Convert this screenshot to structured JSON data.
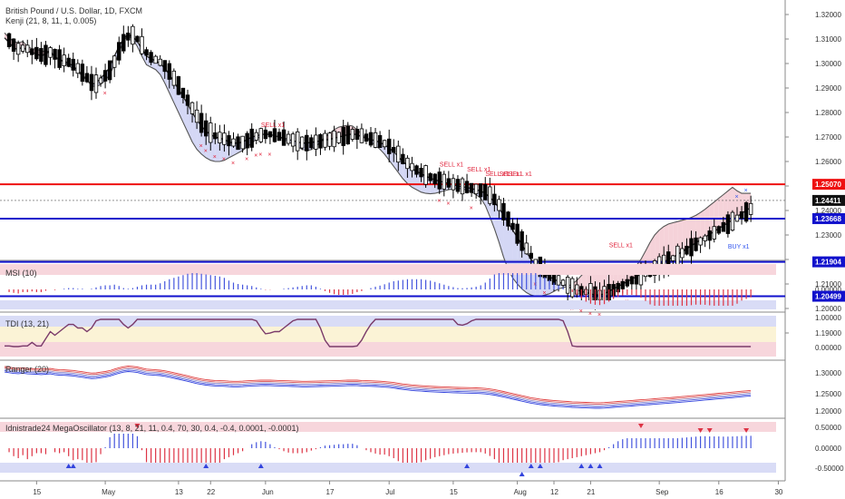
{
  "header": {
    "symbol_title": "British Pound / U.S. Dollar, 1D, FXCM",
    "indicator_title": "Kenji (21, 8, 11, 1, 0.005)"
  },
  "colors": {
    "up_candle": "#ffffff",
    "down_candle": "#000000",
    "resistance": "#ee1111",
    "support": "#1111cc",
    "sell_marker": "#e0223a",
    "buy_marker": "#3355ee",
    "ribbon_fill_bear": "#f3c7cf",
    "ribbon_fill_bull": "#c9cdf2"
  },
  "chart_data": [
    {
      "type": "line",
      "title": "British Pound / U.S. Dollar, 1D, FXCM",
      "subtitle": "Kenji (21, 8, 11, 1, 0.005)",
      "xlabel": "",
      "ylabel": "",
      "ylim": [
        1.19,
        1.325
      ],
      "y_ticks": [
        "1.32000",
        "1.31000",
        "1.30000",
        "1.29000",
        "1.28000",
        "1.27000",
        "1.26000",
        "1.25000",
        "1.24000",
        "1.23000",
        "1.22000",
        "1.21000",
        "1.20000",
        "1.19000"
      ],
      "x_ticks": [
        "15",
        "May",
        "13",
        "22",
        "Jun",
        "17",
        "Jul",
        "15",
        "Aug",
        "12",
        "21",
        "Sep",
        "16",
        "30"
      ],
      "x_tick_index": [
        7,
        22,
        38,
        45,
        57,
        71,
        84,
        98,
        112,
        120,
        128,
        143,
        156,
        169
      ],
      "series": [
        {
          "values": [
            1.3105,
            1.3085,
            1.3065,
            1.3055,
            1.307,
            1.305,
            1.3045,
            1.304,
            1.303,
            1.304,
            1.305,
            1.3025,
            1.3015,
            1.301,
            1.3,
            1.299,
            1.297,
            1.2955,
            1.293,
            1.2915,
            1.292,
            1.294,
            1.296,
            1.2985,
            1.303,
            1.307,
            1.31,
            1.312,
            1.311,
            1.309,
            1.306,
            1.303,
            1.302,
            1.301,
            1.3,
            1.298,
            1.2955,
            1.2925,
            1.2895,
            1.2865,
            1.2835,
            1.28,
            1.277,
            1.2745,
            1.2725,
            1.271,
            1.27,
            1.2695,
            1.269,
            1.268,
            1.2675,
            1.2675,
            1.268,
            1.269,
            1.27,
            1.2705,
            1.271,
            1.2712,
            1.271,
            1.2705,
            1.27,
            1.2695,
            1.269,
            1.2685,
            1.268,
            1.2675,
            1.2675,
            1.2678,
            1.268,
            1.2685,
            1.2688,
            1.269,
            1.2695,
            1.27,
            1.2705,
            1.271,
            1.2712,
            1.271,
            1.27,
            1.2695,
            1.269,
            1.2685,
            1.2678,
            1.2668,
            1.2655,
            1.264,
            1.262,
            1.26,
            1.2585,
            1.257,
            1.256,
            1.255,
            1.254,
            1.2532,
            1.2525,
            1.252,
            1.2515,
            1.251,
            1.2505,
            1.25,
            1.2497,
            1.2494,
            1.249,
            1.2485,
            1.248,
            1.247,
            1.2455,
            1.2435,
            1.241,
            1.238,
            1.235,
            1.232,
            1.229,
            1.226,
            1.223,
            1.22,
            1.218,
            1.216,
            1.2145,
            1.213,
            1.212,
            1.211,
            1.21,
            1.209,
            1.208,
            1.2075,
            1.207,
            1.2065,
            1.206,
            1.2055,
            1.2055,
            1.206,
            1.207,
            1.208,
            1.209,
            1.21,
            1.211,
            1.212,
            1.213,
            1.214,
            1.215,
            1.216,
            1.217,
            1.218,
            1.219,
            1.22,
            1.221,
            1.222,
            1.2232,
            1.2244,
            1.2256,
            1.2268,
            1.228,
            1.2292,
            1.2303,
            1.2315,
            1.2327,
            1.2338,
            1.235,
            1.2362,
            1.2375,
            1.2388,
            1.24,
            1.2412
          ]
        },
        {
          "values": [
            1.3125,
            1.3105,
            1.309,
            1.3085,
            1.309,
            1.307,
            1.306,
            1.306,
            1.305,
            1.305,
            1.305,
            1.303,
            1.3015,
            1.3005,
            1.299,
            1.298,
            1.2965,
            1.295,
            1.293,
            1.291,
            1.2905,
            1.2915,
            1.293,
            1.2955,
            1.2995,
            1.3045,
            1.309,
            1.3115,
            1.31,
            1.307,
            1.303,
            1.2995,
            1.2985,
            1.2975,
            1.2955,
            1.292,
            1.288,
            1.284,
            1.28,
            1.276,
            1.272,
            1.268,
            1.265,
            1.263,
            1.2615,
            1.2605,
            1.26,
            1.26,
            1.2605,
            1.2615,
            1.2625,
            1.2635,
            1.2645,
            1.266,
            1.2675,
            1.269,
            1.2705,
            1.2715,
            1.2712,
            1.2705,
            1.27,
            1.269,
            1.268,
            1.267,
            1.266,
            1.265,
            1.2645,
            1.2648,
            1.266,
            1.268,
            1.27,
            1.2715,
            1.273,
            1.274,
            1.2745,
            1.2748,
            1.2745,
            1.273,
            1.2712,
            1.2695,
            1.268,
            1.2665,
            1.265,
            1.263,
            1.2605,
            1.258,
            1.2555,
            1.253,
            1.251,
            1.2495,
            1.2485,
            1.2475,
            1.247,
            1.2468,
            1.247,
            1.2475,
            1.248,
            1.2485,
            1.2488,
            1.249,
            1.2488,
            1.2483,
            1.2475,
            1.2465,
            1.245,
            1.242,
            1.2375,
            1.2325,
            1.227,
            1.221,
            1.216,
            1.2125,
            1.21,
            1.208,
            1.2065,
            1.2055,
            1.205,
            1.205,
            1.2055,
            1.206,
            1.207,
            1.208,
            1.2085,
            1.209,
            1.21,
            1.2115,
            1.2135,
            1.2155,
            1.2165,
            1.2168,
            1.217,
            1.2168,
            1.216,
            1.215,
            1.2145,
            1.2145,
            1.215,
            1.216,
            1.2175,
            1.22,
            1.2235,
            1.227,
            1.23,
            1.232,
            1.2335,
            1.2345,
            1.235,
            1.2355,
            1.236,
            1.2365,
            1.2372,
            1.238,
            1.2392,
            1.2405,
            1.242,
            1.2435,
            1.245,
            1.2465,
            1.248,
            1.2495,
            1.248,
            1.247,
            1.247,
            1.247,
            1.247,
            1.247,
            1.247,
            1.247
          ]
        },
        {
          "name": "Support",
          "values": [
            1.2507,
            1.23668,
            1.21904,
            1.20499
          ]
        }
      ]
    },
    {
      "type": "bar",
      "title": "MSI (10)",
      "ylim": [
        -0.015,
        0.015
      ],
      "y_ticks": [
        "0.00000"
      ]
    },
    {
      "type": "line",
      "title": "TDI (13, 21)",
      "ylim": [
        -0.2,
        1.1
      ],
      "y_ticks": [
        "1.00000",
        "0.00000"
      ]
    },
    {
      "type": "line",
      "title": "Ranger (20)",
      "ylim": [
        1.18,
        1.34
      ],
      "y_ticks": [
        "1.30000",
        "1.25000",
        "1.20000"
      ]
    },
    {
      "type": "bar",
      "title": "Idnistrade24 MegaOscillator (13, 8, 21, 11, 0.4, 70, 30, 0.4, -0.4, 0.0001, -0.0001)",
      "ylim": [
        -0.65,
        0.65
      ],
      "y_ticks": [
        "0.50000",
        "0.00000",
        "-0.50000"
      ]
    }
  ],
  "price_axis": {
    "labels": [
      "1.32000",
      "1.31000",
      "1.30000",
      "1.29000",
      "1.28000",
      "1.27000",
      "1.26000",
      "1.25000",
      "1.24000",
      "1.23000",
      "1.22000",
      "1.21000",
      "1.20000",
      "1.19000"
    ],
    "badges": [
      {
        "text": "1.25070",
        "kind": "resistance"
      },
      {
        "text": "1.24411",
        "kind": "last"
      },
      {
        "text": "1.23668",
        "kind": "support"
      },
      {
        "text": "1.21904",
        "kind": "support"
      },
      {
        "text": "1.20499",
        "kind": "support"
      }
    ]
  },
  "signals": {
    "sell_label": "SELL x1",
    "buy_label": "BUY x1"
  },
  "panels": {
    "msi_title": "MSI (10)",
    "tdi_title": "TDI (13, 21)",
    "ranger_title": "Ranger (20)",
    "mega_title": "Idnistrade24 MegaOscillator (13, 8, 21, 11, 0.4, 70, 30, 0.4, -0.4, 0.0001, -0.0001)"
  },
  "time_axis": {
    "labels": [
      "15",
      "May",
      "13",
      "22",
      "Jun",
      "17",
      "Jul",
      "15",
      "Aug",
      "12",
      "21",
      "Sep",
      "16",
      "30"
    ]
  }
}
